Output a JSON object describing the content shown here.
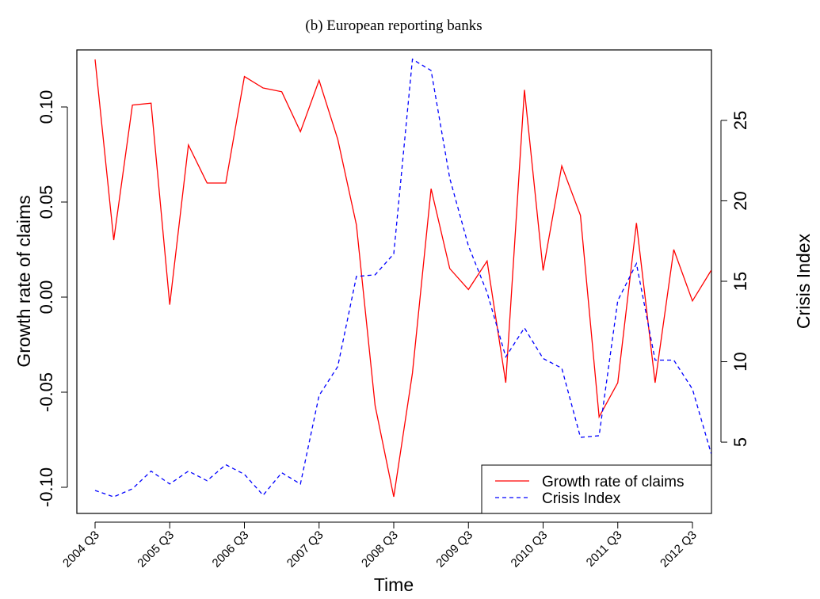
{
  "chart_data": {
    "type": "line",
    "title": "(b) European reporting banks",
    "xlabel": "Time",
    "ylabel": "Growth rate of claims",
    "y2label": "Crisis Index",
    "categories": [
      "2004 Q3",
      null,
      null,
      null,
      "2005 Q3",
      null,
      null,
      null,
      "2006 Q3",
      null,
      null,
      null,
      "2007 Q3",
      null,
      null,
      null,
      "2008 Q3",
      null,
      null,
      null,
      "2009 Q3",
      null,
      null,
      null,
      "2010 Q3",
      null,
      null,
      null,
      "2011 Q3",
      null,
      null,
      null,
      "2012 Q3",
      null
    ],
    "series": [
      {
        "name": "Growth rate of claims",
        "color": "#ff0000",
        "linestyle": "solid",
        "axis": "y",
        "values": [
          0.125,
          0.03,
          0.101,
          0.102,
          -0.004,
          0.08,
          0.06,
          0.06,
          0.116,
          0.11,
          0.108,
          0.087,
          0.114,
          0.083,
          0.038,
          -0.057,
          -0.105,
          -0.04,
          0.057,
          0.015,
          0.004,
          0.019,
          -0.045,
          0.109,
          0.014,
          0.069,
          0.043,
          -0.063,
          -0.045,
          0.039,
          -0.045,
          0.025,
          -0.002,
          0.014
        ]
      },
      {
        "name": "Crisis Index",
        "color": "#0000ff",
        "linestyle": "dashed",
        "axis": "y2",
        "values": [
          2.0,
          1.6,
          2.1,
          3.2,
          2.4,
          3.2,
          2.6,
          3.6,
          3.0,
          1.7,
          3.1,
          2.4,
          7.9,
          9.7,
          15.3,
          15.4,
          16.7,
          28.8,
          28.1,
          21.4,
          17.2,
          14.3,
          10.3,
          12.1,
          10.2,
          9.6,
          5.3,
          5.4,
          13.8,
          16.1,
          10.1,
          10.1,
          8.3,
          4.3
        ]
      }
    ],
    "ylim": [
      -0.11375,
      0.13
    ],
    "yticks": [
      {
        "value": -0.1,
        "label": "-0.10"
      },
      {
        "value": -0.05,
        "label": "-0.05"
      },
      {
        "value": 0,
        "label": "0.00"
      },
      {
        "value": 0.05,
        "label": "0.05"
      },
      {
        "value": 0.1,
        "label": "0.10"
      }
    ],
    "y2lim": [
      0.57,
      29.38
    ],
    "y2ticks": [
      5,
      10,
      15,
      20,
      25
    ],
    "legend": "bottomright"
  }
}
